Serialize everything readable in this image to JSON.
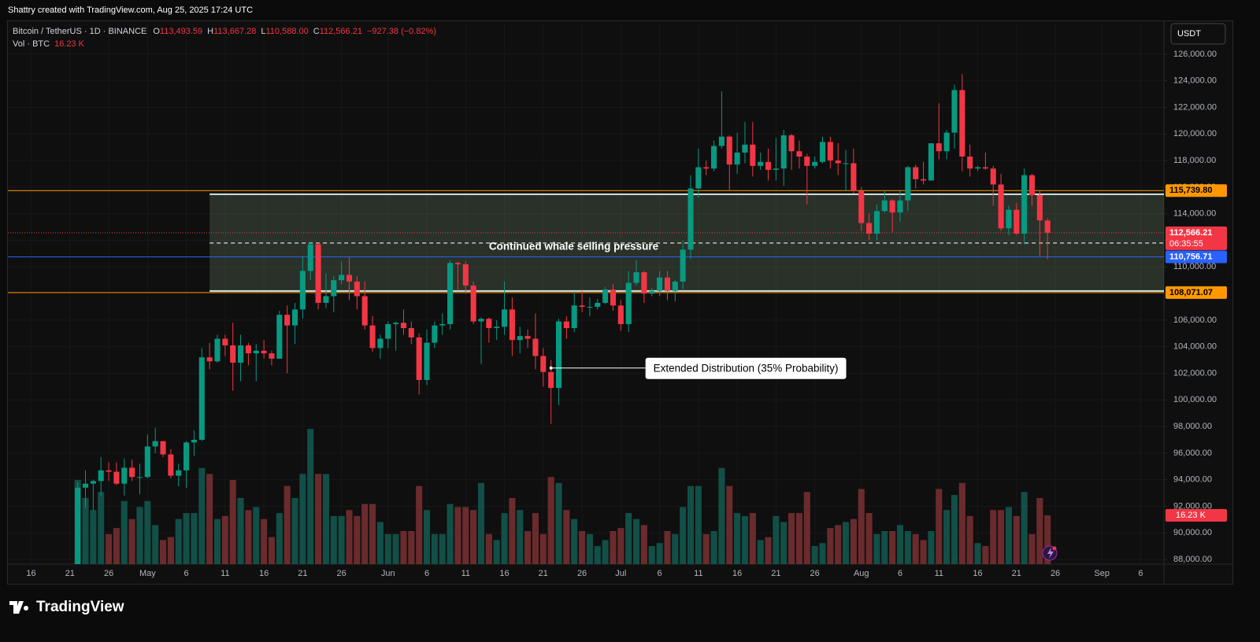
{
  "page": {
    "attribution": "Shattry created with TradingView.com, Aug 25, 2025 17:24 UTC",
    "logo": "TradingView"
  },
  "chart_data": {
    "type": "candlestick",
    "title": "Bitcoin / TetherUS · 1D · BINANCE",
    "legend_fields": [
      {
        "key": "O",
        "value": "113,493.59"
      },
      {
        "key": "H",
        "value": "113,667.28"
      },
      {
        "key": "L",
        "value": "110,588.00"
      },
      {
        "key": "C",
        "value": "112,566.21"
      }
    ],
    "change": "−927.38 (−0.82%)",
    "currency": "USDT",
    "up_color": "#089981",
    "down_color": "#f23645",
    "x": [
      "2025-04-22",
      "2025-04-23",
      "2025-04-24",
      "2025-04-25",
      "2025-04-26",
      "2025-04-27",
      "2025-04-28",
      "2025-04-29",
      "2025-04-30",
      "2025-05-01",
      "2025-05-02",
      "2025-05-03",
      "2025-05-04",
      "2025-05-05",
      "2025-05-06",
      "2025-05-07",
      "2025-05-08",
      "2025-05-09",
      "2025-05-10",
      "2025-05-11",
      "2025-05-12",
      "2025-05-13",
      "2025-05-14",
      "2025-05-15",
      "2025-05-16",
      "2025-05-17",
      "2025-05-18",
      "2025-05-19",
      "2025-05-20",
      "2025-05-21",
      "2025-05-22",
      "2025-05-23",
      "2025-05-24",
      "2025-05-25",
      "2025-05-26",
      "2025-05-27",
      "2025-05-28",
      "2025-05-29",
      "2025-05-30",
      "2025-05-31",
      "2025-06-01",
      "2025-06-02",
      "2025-06-03",
      "2025-06-04",
      "2025-06-05",
      "2025-06-06",
      "2025-06-07",
      "2025-06-08",
      "2025-06-09",
      "2025-06-10",
      "2025-06-11",
      "2025-06-12",
      "2025-06-13",
      "2025-06-14",
      "2025-06-15",
      "2025-06-16",
      "2025-06-17",
      "2025-06-18",
      "2025-06-19",
      "2025-06-20",
      "2025-06-21",
      "2025-06-22",
      "2025-06-23",
      "2025-06-24",
      "2025-06-25",
      "2025-06-26",
      "2025-06-27",
      "2025-06-28",
      "2025-06-29",
      "2025-06-30",
      "2025-07-01",
      "2025-07-02",
      "2025-07-03",
      "2025-07-04",
      "2025-07-05",
      "2025-07-06",
      "2025-07-07",
      "2025-07-08",
      "2025-07-09",
      "2025-07-10",
      "2025-07-11",
      "2025-07-12",
      "2025-07-13",
      "2025-07-14",
      "2025-07-15",
      "2025-07-16",
      "2025-07-17",
      "2025-07-18",
      "2025-07-19",
      "2025-07-20",
      "2025-07-21",
      "2025-07-22",
      "2025-07-23",
      "2025-07-24",
      "2025-07-25",
      "2025-07-26",
      "2025-07-27",
      "2025-07-28",
      "2025-07-29",
      "2025-07-30",
      "2025-07-31",
      "2025-08-01",
      "2025-08-02",
      "2025-08-03",
      "2025-08-04",
      "2025-08-05",
      "2025-08-06",
      "2025-08-07",
      "2025-08-08",
      "2025-08-09",
      "2025-08-10",
      "2025-08-11",
      "2025-08-12",
      "2025-08-13",
      "2025-08-14",
      "2025-08-15",
      "2025-08-16",
      "2025-08-17",
      "2025-08-18",
      "2025-08-19",
      "2025-08-20",
      "2025-08-21",
      "2025-08-22",
      "2025-08-23",
      "2025-08-24",
      "2025-08-25"
    ],
    "open": [
      87500,
      93400,
      93700,
      93900,
      94700,
      94600,
      93700,
      94900,
      94200,
      94200,
      96500,
      96900,
      95900,
      94300,
      94700,
      96800,
      97000,
      103200,
      102900,
      104600,
      104100,
      102800,
      104100,
      103500,
      103700,
      103500,
      103100,
      106400,
      105600,
      106800,
      109700,
      111700,
      107300,
      107800,
      109000,
      109400,
      108900,
      107800,
      105600,
      103900,
      104600,
      105700,
      105800,
      105400,
      104700,
      101500,
      104300,
      105600,
      105700,
      110300,
      110200,
      108600,
      105900,
      106100,
      105400,
      105500,
      106800,
      104500,
      104800,
      104600,
      103300,
      102100,
      100900,
      105900,
      105400,
      107100,
      107000,
      107000,
      107300,
      108300,
      107100,
      105700,
      108800,
      109600,
      108000,
      108200,
      109200,
      108200,
      108900,
      111300,
      115900,
      117500,
      117400,
      119100,
      119800,
      117700,
      118600,
      119200,
      117600,
      117900,
      117300,
      117400,
      119900,
      118700,
      118300,
      117600,
      117900,
      119400,
      118000,
      117800,
      117800,
      115700,
      113300,
      112500,
      114200,
      115000,
      114100,
      115000,
      117500,
      116600,
      116500,
      119300,
      118700,
      120100,
      123300,
      118300,
      117400,
      117500,
      117400,
      116200,
      112900,
      114300,
      112500,
      116900,
      115400,
      113493.59
    ],
    "high": [
      93800,
      94700,
      94000,
      95700,
      95300,
      95300,
      95600,
      95500,
      95200,
      97400,
      97900,
      96900,
      96300,
      95200,
      96900,
      97700,
      103900,
      104300,
      104900,
      104900,
      105800,
      104900,
      104300,
      104200,
      104500,
      103700,
      106700,
      107100,
      107300,
      110800,
      111900,
      111800,
      109500,
      109300,
      110400,
      110700,
      109300,
      108900,
      106300,
      104900,
      105900,
      105900,
      106800,
      105900,
      105000,
      105300,
      105900,
      106500,
      110500,
      110400,
      110400,
      108900,
      106200,
      106200,
      106000,
      108900,
      107700,
      105500,
      105300,
      106500,
      103900,
      103000,
      106100,
      106300,
      108100,
      108200,
      107700,
      107600,
      108500,
      108700,
      107500,
      109700,
      110500,
      109700,
      108400,
      109700,
      109700,
      109000,
      112000,
      116900,
      118900,
      118000,
      119500,
      123200,
      119900,
      120100,
      120900,
      120900,
      118600,
      118900,
      119700,
      120300,
      120000,
      119500,
      118500,
      118300,
      119800,
      119800,
      119300,
      118800,
      118900,
      116000,
      114000,
      114700,
      115700,
      115100,
      115700,
      117600,
      117700,
      117900,
      119300,
      122300,
      120300,
      123700,
      124500,
      119200,
      117600,
      118600,
      117600,
      117000,
      114600,
      114800,
      117400,
      117000,
      115700,
      113667.28
    ],
    "low": [
      87000,
      91900,
      91700,
      92800,
      93900,
      93600,
      92800,
      93900,
      92900,
      94100,
      96000,
      95700,
      94100,
      93500,
      93400,
      95800,
      96900,
      102300,
      102800,
      103300,
      100700,
      101400,
      102600,
      101400,
      103100,
      102600,
      103100,
      102000,
      104200,
      106100,
      109000,
      106800,
      106900,
      106600,
      108700,
      107500,
      106800,
      105300,
      103600,
      103100,
      103900,
      103700,
      104900,
      104200,
      100400,
      101100,
      103900,
      104900,
      105300,
      108300,
      108000,
      105700,
      102700,
      104300,
      104500,
      104900,
      103300,
      103500,
      103900,
      102300,
      101000,
      98200,
      99600,
      104600,
      105100,
      106600,
      106300,
      106800,
      107200,
      106700,
      105200,
      105100,
      108600,
      107300,
      107800,
      107800,
      107500,
      107400,
      108300,
      110600,
      115200,
      116900,
      117200,
      118900,
      115700,
      117000,
      117800,
      116800,
      117300,
      116500,
      116500,
      116100,
      117300,
      117400,
      114700,
      117400,
      117800,
      117400,
      116900,
      115700,
      115500,
      112700,
      112000,
      112000,
      114100,
      112600,
      113400,
      114200,
      115900,
      116200,
      116500,
      118100,
      118100,
      118900,
      117200,
      116800,
      117200,
      117300,
      114600,
      112700,
      112400,
      112400,
      111700,
      114600,
      110800,
      110588
    ],
    "close": [
      93400,
      93700,
      93900,
      94700,
      94600,
      93700,
      94900,
      94200,
      94200,
      96500,
      96900,
      95900,
      94300,
      94700,
      96800,
      97000,
      103200,
      102900,
      104600,
      104100,
      102800,
      104100,
      103500,
      103700,
      103500,
      103100,
      106400,
      105600,
      106800,
      109700,
      111700,
      107300,
      107800,
      109000,
      109400,
      108900,
      107800,
      105600,
      103900,
      104600,
      105700,
      105800,
      105400,
      104700,
      101500,
      104300,
      105600,
      105700,
      110300,
      110200,
      108600,
      105900,
      106100,
      105400,
      105500,
      106800,
      104500,
      104800,
      104600,
      103300,
      102100,
      100900,
      105900,
      105400,
      107100,
      107000,
      107000,
      107300,
      108300,
      107100,
      105700,
      108800,
      109600,
      108000,
      108200,
      109200,
      108200,
      108900,
      111300,
      115900,
      117500,
      117400,
      119100,
      119800,
      117700,
      118600,
      119200,
      117600,
      117900,
      117300,
      117400,
      119900,
      118700,
      118300,
      117600,
      117900,
      119400,
      118000,
      117800,
      117800,
      115700,
      113300,
      112500,
      114200,
      115000,
      114100,
      115000,
      117500,
      116600,
      116500,
      119300,
      118700,
      120100,
      123300,
      118300,
      117400,
      117500,
      117400,
      116200,
      112900,
      114300,
      112500,
      116900,
      115400,
      113500,
      112566.21
    ],
    "volume": {
      "name": "Vol · BTC",
      "last_label": "16.23 K",
      "values": [
        28,
        22,
        18,
        24,
        10,
        12,
        21,
        15,
        19,
        21,
        13,
        8,
        9,
        15,
        17,
        17,
        32,
        30,
        15,
        16,
        28,
        22,
        18,
        19,
        15,
        9,
        17,
        26,
        22,
        30,
        45,
        30,
        30,
        16,
        16,
        18,
        16,
        20,
        20,
        14,
        10,
        10,
        11,
        11,
        26,
        18,
        10,
        10,
        20,
        19,
        19,
        18,
        27,
        10,
        8,
        17,
        22,
        18,
        11,
        17,
        10,
        29,
        27,
        18,
        15,
        11,
        10,
        6,
        8,
        11,
        12,
        17,
        15,
        13,
        6,
        7,
        11,
        10,
        19,
        26,
        26,
        10,
        11,
        32,
        26,
        17,
        16,
        17,
        8,
        9,
        16,
        14,
        17,
        17,
        24,
        6,
        7,
        12,
        13,
        14,
        15,
        25,
        17,
        10,
        11,
        11,
        13,
        11,
        10,
        8,
        11,
        25,
        18,
        23,
        27,
        16,
        7,
        6,
        18,
        18,
        19,
        16,
        24,
        10,
        22,
        16.23
      ]
    },
    "xlim": [
      "2025-04-13",
      "2025-09-09"
    ],
    "ylim": [
      87650,
      128300
    ],
    "yticks": [
      {
        "value": 88000,
        "label": "88,000.00"
      },
      {
        "value": 90000,
        "label": "90,000.00"
      },
      {
        "value": 92000,
        "label": "92,000.00"
      },
      {
        "value": 94000,
        "label": "94,000.00"
      },
      {
        "value": 96000,
        "label": "96,000.00"
      },
      {
        "value": 98000,
        "label": "98,000.00"
      },
      {
        "value": 100000,
        "label": "100,000.00"
      },
      {
        "value": 102000,
        "label": "102,000.00"
      },
      {
        "value": 104000,
        "label": "104,000.00"
      },
      {
        "value": 106000,
        "label": "106,000.00"
      },
      {
        "value": 108000,
        "label": "108,000.00"
      },
      {
        "value": 110000,
        "label": "110,000.00"
      },
      {
        "value": 112000,
        "label": "112,000.00"
      },
      {
        "value": 114000,
        "label": "114,000.00"
      },
      {
        "value": 116000,
        "label": "116,000.00"
      },
      {
        "value": 118000,
        "label": "118,000.00"
      },
      {
        "value": 120000,
        "label": "120,000.00"
      },
      {
        "value": 122000,
        "label": "122,000.00"
      },
      {
        "value": 124000,
        "label": "124,000.00"
      },
      {
        "value": 126000,
        "label": "126,000.00"
      }
    ],
    "xticks": [
      {
        "value": "2025-04-16",
        "label": "16"
      },
      {
        "value": "2025-04-21",
        "label": "21"
      },
      {
        "value": "2025-04-26",
        "label": "26"
      },
      {
        "value": "2025-05-01",
        "label": "May"
      },
      {
        "value": "2025-05-06",
        "label": "6"
      },
      {
        "value": "2025-05-11",
        "label": "11"
      },
      {
        "value": "2025-05-16",
        "label": "16"
      },
      {
        "value": "2025-05-21",
        "label": "21"
      },
      {
        "value": "2025-05-26",
        "label": "26"
      },
      {
        "value": "2025-06-01",
        "label": "Jun"
      },
      {
        "value": "2025-06-06",
        "label": "6"
      },
      {
        "value": "2025-06-11",
        "label": "11"
      },
      {
        "value": "2025-06-16",
        "label": "16"
      },
      {
        "value": "2025-06-21",
        "label": "21"
      },
      {
        "value": "2025-06-26",
        "label": "26"
      },
      {
        "value": "2025-07-01",
        "label": "Jul"
      },
      {
        "value": "2025-07-06",
        "label": "6"
      },
      {
        "value": "2025-07-11",
        "label": "11"
      },
      {
        "value": "2025-07-16",
        "label": "16"
      },
      {
        "value": "2025-07-21",
        "label": "21"
      },
      {
        "value": "2025-07-26",
        "label": "26"
      },
      {
        "value": "2025-08-01",
        "label": "Aug"
      },
      {
        "value": "2025-08-06",
        "label": "6"
      },
      {
        "value": "2025-08-11",
        "label": "11"
      },
      {
        "value": "2025-08-16",
        "label": "16"
      },
      {
        "value": "2025-08-21",
        "label": "21"
      },
      {
        "value": "2025-08-26",
        "label": "26"
      },
      {
        "value": "2025-09-01",
        "label": "Sep"
      },
      {
        "value": "2025-09-06",
        "label": "6"
      }
    ],
    "grid": true,
    "price_lines": [
      {
        "value": 115739.8,
        "label": "115,739.80",
        "color": "#ff9800",
        "style": "solid"
      },
      {
        "value": 112566.21,
        "label": "112,566.21",
        "color": "#f23645",
        "style": "dotted",
        "countdown": "06:35:55"
      },
      {
        "value": 110756.71,
        "label": "110,756.71",
        "color": "#2962ff",
        "style": "solid"
      },
      {
        "value": 108071.07,
        "label": "108,071.07",
        "color": "#ff9800",
        "style": "solid"
      }
    ],
    "zone": {
      "start": "2025-05-09",
      "top": 115470,
      "bottom": 108190,
      "mid": 111800
    },
    "annotations": [
      {
        "text": "Continued whale selling pressure",
        "x": "2025-06-14",
        "y": 111500,
        "style": "plain"
      },
      {
        "text": "Extended Distribution (35% Probability)",
        "x": "2025-06-22",
        "y": 102400,
        "style": "callout"
      }
    ]
  }
}
